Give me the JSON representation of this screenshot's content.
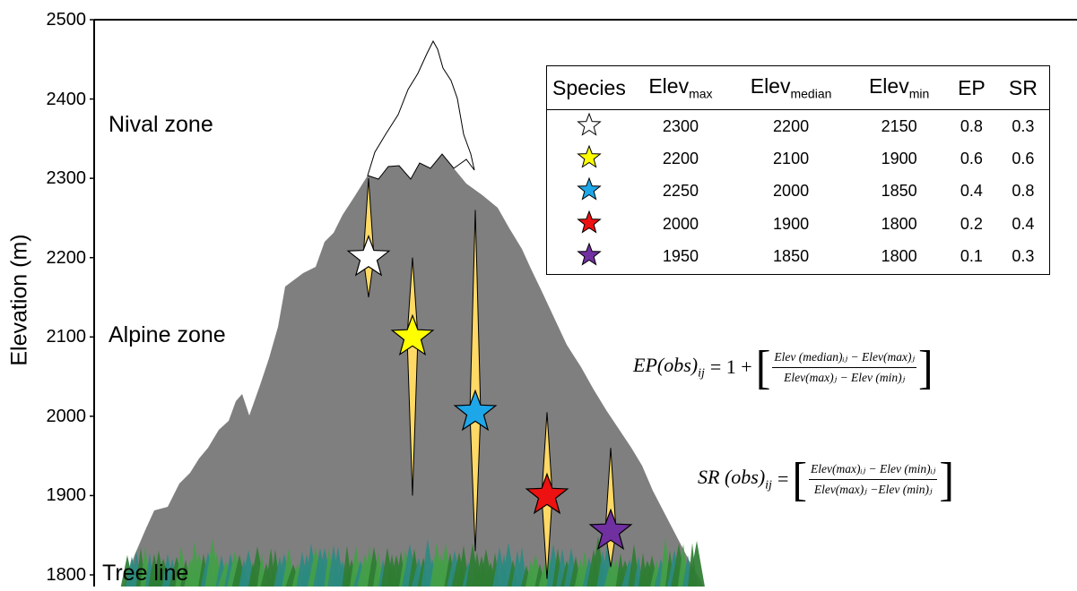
{
  "y_axis": {
    "title": "Elevation (m)",
    "ticks": [
      "2500",
      "2400",
      "2300",
      "2200",
      "2100",
      "2000",
      "1900",
      "1800"
    ]
  },
  "zones": {
    "nival": "Nival zone",
    "alpine": "Alpine zone",
    "tree_line": "Tree line"
  },
  "table": {
    "headers": {
      "species": "Species",
      "elev_max_base": "Elev",
      "elev_max_sub": "max",
      "elev_median_base": "Elev",
      "elev_median_sub": "median",
      "elev_min_base": "Elev",
      "elev_min_sub": "min",
      "ep": "EP",
      "sr": "SR"
    },
    "rows": [
      {
        "star_color": "#ffffff",
        "elev_max": "2300",
        "elev_median": "2200",
        "elev_min": "2150",
        "ep": "0.8",
        "sr": "0.3"
      },
      {
        "star_color": "#ffff00",
        "elev_max": "2200",
        "elev_median": "2100",
        "elev_min": "1900",
        "ep": "0.6",
        "sr": "0.6"
      },
      {
        "star_color": "#1ea7e8",
        "elev_max": "2250",
        "elev_median": "2000",
        "elev_min": "1850",
        "ep": "0.4",
        "sr": "0.8"
      },
      {
        "star_color": "#ee1111",
        "elev_max": "2000",
        "elev_median": "1900",
        "elev_min": "1800",
        "ep": "0.2",
        "sr": "0.4"
      },
      {
        "star_color": "#7030a0",
        "elev_max": "1950",
        "elev_median": "1850",
        "elev_min": "1800",
        "ep": "0.1",
        "sr": "0.3"
      }
    ]
  },
  "ranges": [
    {
      "top": 2300,
      "bottom": 2150,
      "median": 2200,
      "star_color": "#ffffff"
    },
    {
      "top": 2200,
      "bottom": 1900,
      "median": 2100,
      "star_color": "#ffff00"
    },
    {
      "top": 2260,
      "bottom": 1830,
      "median": 2005,
      "star_color": "#1ea7e8"
    },
    {
      "top": 2005,
      "bottom": 1795,
      "median": 1900,
      "star_color": "#ee1111"
    },
    {
      "top": 1960,
      "bottom": 1810,
      "median": 1855,
      "star_color": "#7030a0"
    }
  ],
  "formulas": {
    "ep": {
      "lhs": "EP(obs)",
      "lhs_sub": "ij",
      "eq": "= 1 +",
      "num": "Elev (median)ᵢⱼ − Elev(max)ⱼ",
      "den": "Elev(max)ⱼ − Elev (min)ⱼ"
    },
    "sr": {
      "lhs": "SR (obs)",
      "lhs_sub": "ij",
      "eq": "=",
      "num": "Elev(max)ᵢⱼ − Elev (min)ᵢⱼ",
      "den": "Elev(max)ⱼ −Elev (min)ⱼ"
    }
  },
  "colors": {
    "mountain": "#7f7f7f",
    "range_fill": "#ffd966",
    "snow_outline": "#000000",
    "forest_dark": "#2e7d32",
    "forest_mid": "#43a047",
    "forest_teal": "#2a8a80"
  }
}
